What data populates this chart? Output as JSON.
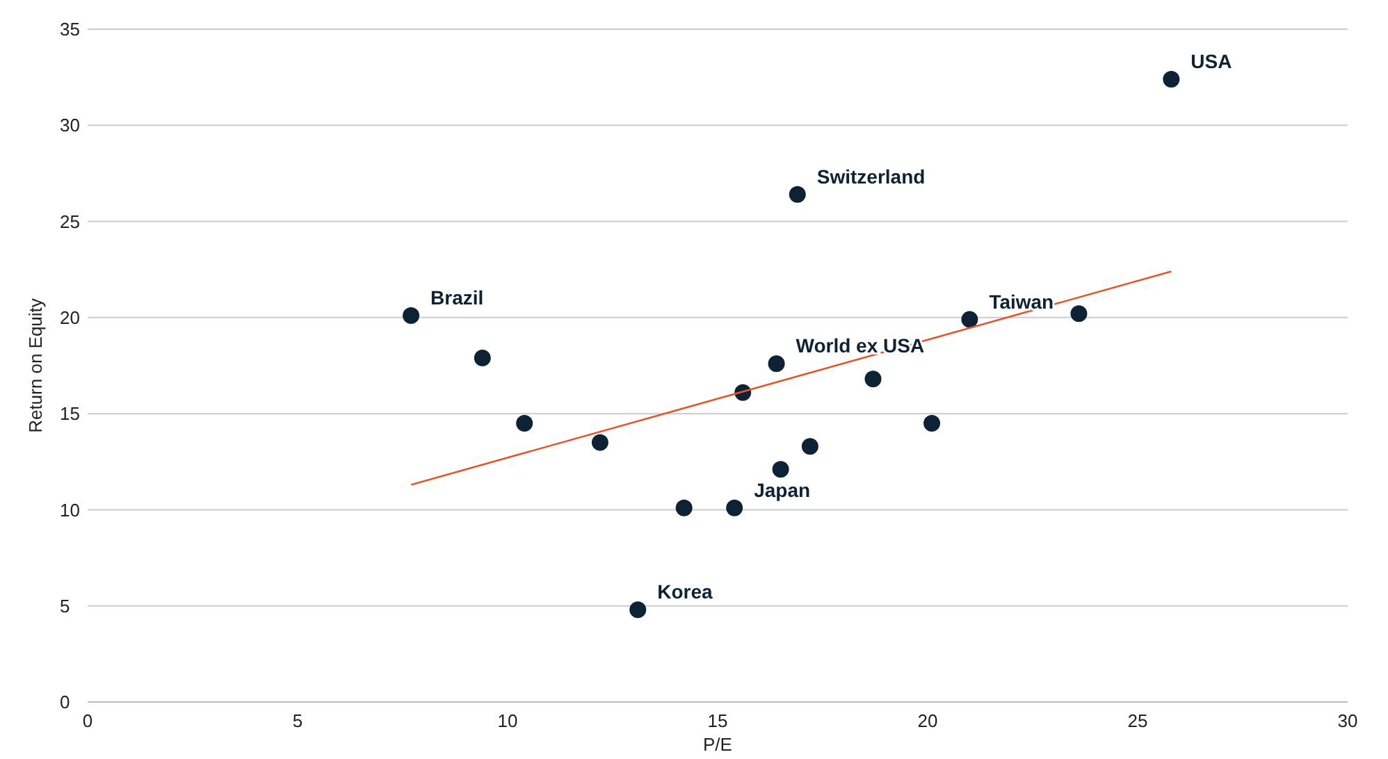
{
  "chart_data": {
    "type": "scatter",
    "xlabel": "P/E",
    "ylabel": "Return on Equity",
    "xlim": [
      0,
      30
    ],
    "xticks": [
      0,
      5,
      10,
      15,
      20,
      25,
      30
    ],
    "ylim": [
      0,
      35
    ],
    "yticks": [
      0,
      5,
      10,
      15,
      20,
      25,
      30,
      35
    ],
    "grid": "y",
    "marker": "circle",
    "series": [
      {
        "color": "#0d2235",
        "x": [
          25.8,
          16.9,
          7.7,
          9.4,
          10.4,
          12.2,
          14.2,
          13.1,
          15.4,
          15.6,
          16.4,
          16.5,
          17.2,
          18.7,
          20.1,
          21.0,
          23.6
        ],
        "values": [
          32.4,
          26.4,
          20.1,
          17.9,
          14.5,
          13.5,
          10.1,
          4.8,
          10.1,
          16.1,
          17.6,
          12.1,
          13.3,
          16.8,
          14.5,
          19.9,
          20.2
        ]
      },
      {
        "type": "line",
        "marker": "none",
        "color": "#e8542a",
        "x": [
          7.7,
          25.8
        ],
        "values": [
          11.3,
          22.4
        ]
      }
    ],
    "annotations": [
      {
        "text": "USA",
        "x": 25.8,
        "y": 32.4
      },
      {
        "text": "Switzerland",
        "x": 16.9,
        "y": 26.4
      },
      {
        "text": "Brazil",
        "x": 7.7,
        "y": 20.1
      },
      {
        "text": "Korea",
        "x": 13.1,
        "y": 4.8
      },
      {
        "text": "Japan",
        "x": 15.4,
        "y": 10.1
      },
      {
        "text": "World ex USA",
        "x": 16.4,
        "y": 17.6
      },
      {
        "text": "Taiwan",
        "x": 21.0,
        "y": 19.9
      }
    ]
  }
}
